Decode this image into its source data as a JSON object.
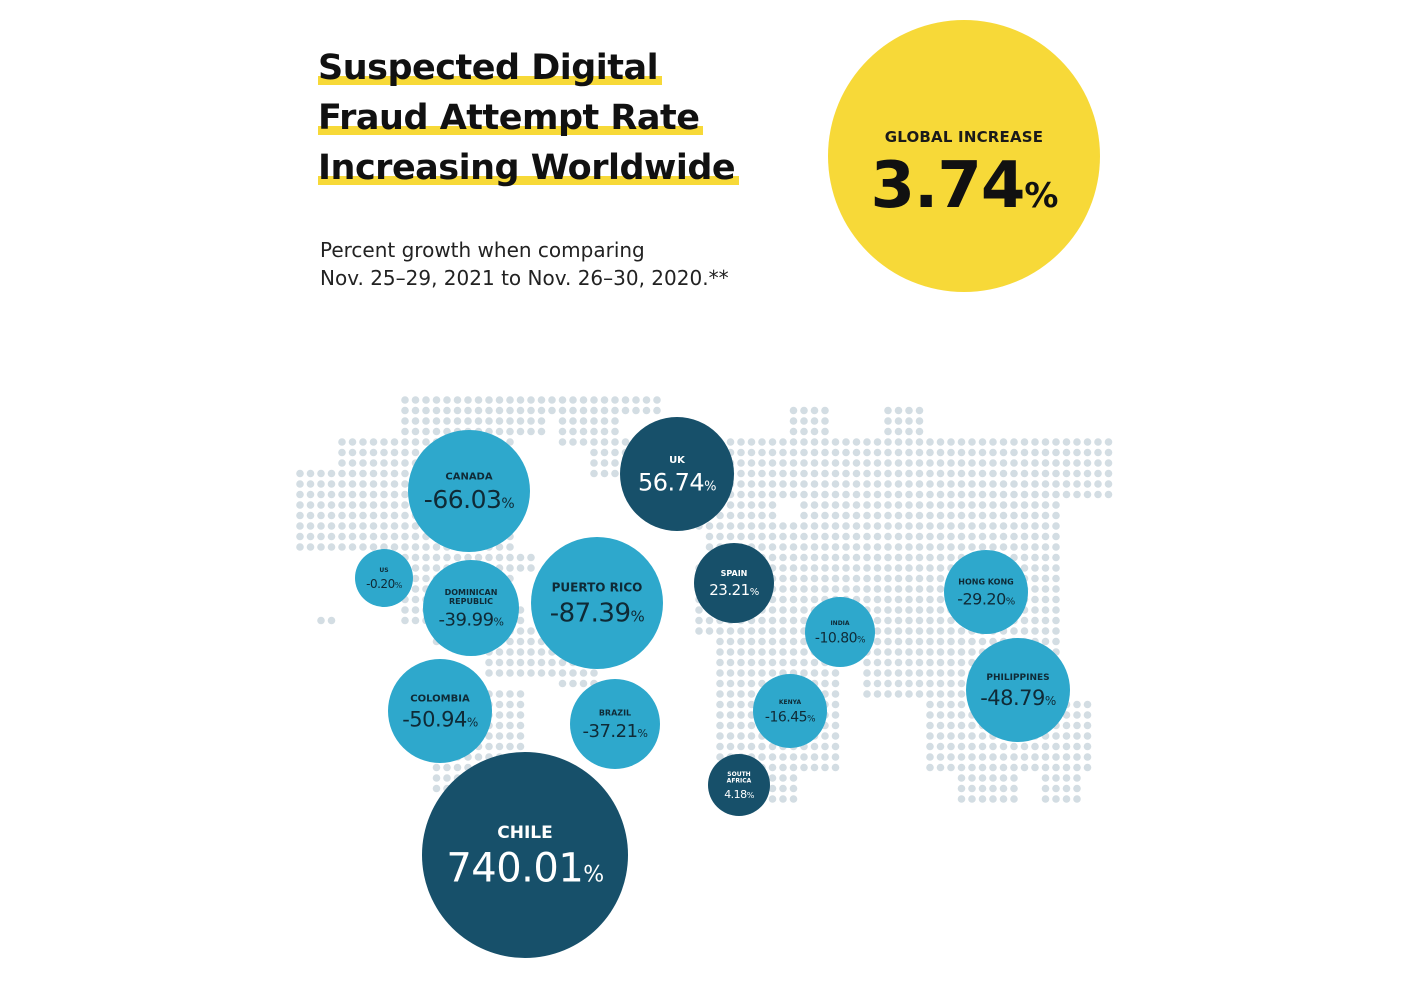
{
  "header": {
    "title_lines": [
      "Suspected Digital",
      "Fraud Attempt Rate",
      "Increasing Worldwide"
    ],
    "subtitle_lines": [
      "Percent growth when comparing",
      "Nov. 25–29, 2021 to Nov. 26–30, 2020.**"
    ]
  },
  "global": {
    "label": "GLOBAL INCREASE",
    "value": "3.74",
    "unit": "%"
  },
  "colors": {
    "accent_yellow": "#F7D938",
    "bubble_light": "#2EA8CC",
    "bubble_dark": "#17506A",
    "map_dots": "#D3DDE3"
  },
  "chart_data": {
    "type": "bubble-map",
    "unit": "%",
    "series": [
      {
        "country": "CANADA",
        "value": -66.03,
        "label": "-66.03"
      },
      {
        "country": "UK",
        "value": 56.74,
        "label": "56.74"
      },
      {
        "country": "US",
        "value": -0.2,
        "label": "-0.20"
      },
      {
        "country": "DOMINICAN REPUBLIC",
        "value": -39.99,
        "label": "-39.99"
      },
      {
        "country": "PUERTO RICO",
        "value": -87.39,
        "label": "-87.39"
      },
      {
        "country": "SPAIN",
        "value": 23.21,
        "label": "23.21"
      },
      {
        "country": "INDIA",
        "value": -10.8,
        "label": "-10.80"
      },
      {
        "country": "HONG KONG",
        "value": -29.2,
        "label": "-29.20"
      },
      {
        "country": "PHILIPPINES",
        "value": -48.79,
        "label": "-48.79"
      },
      {
        "country": "COLOMBIA",
        "value": -50.94,
        "label": "-50.94"
      },
      {
        "country": "BRAZIL",
        "value": -37.21,
        "label": "-37.21"
      },
      {
        "country": "KENYA",
        "value": -16.45,
        "label": "-16.45"
      },
      {
        "country": "SOUTH AFRICA",
        "value": 4.18,
        "label": "4.18"
      },
      {
        "country": "CHILE",
        "value": 740.01,
        "label": "740.01"
      }
    ]
  }
}
